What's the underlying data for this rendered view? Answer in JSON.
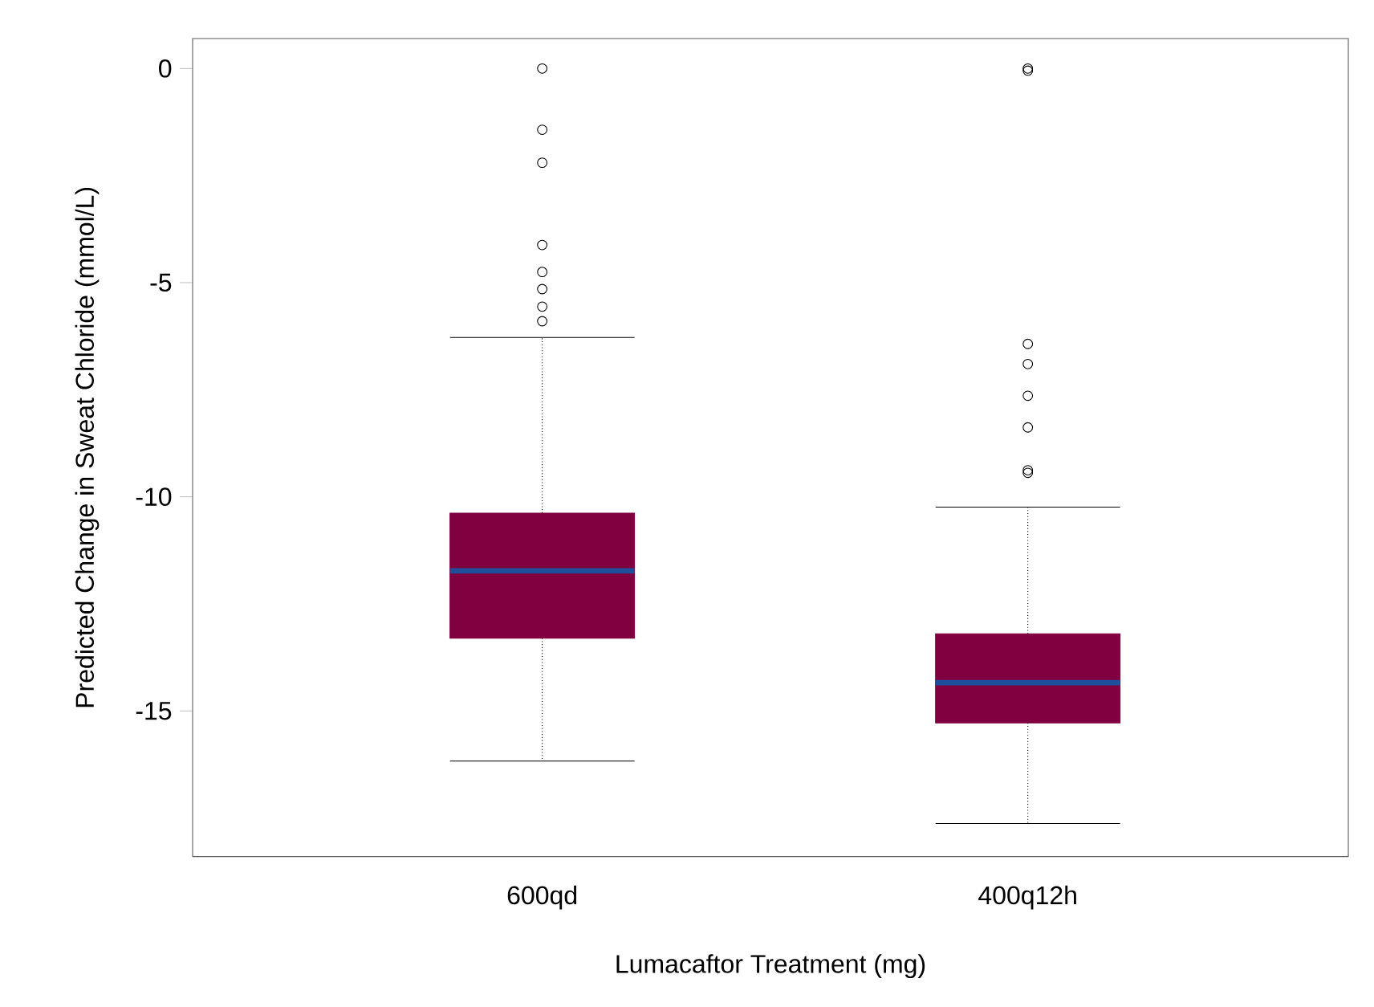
{
  "chart_data": {
    "type": "box",
    "xlabel": "Lumacaftor Treatment (mg)",
    "ylabel": "Predicted Change in Sweat Chloride (mmol/L)",
    "categories": [
      "600qd",
      "400q12h"
    ],
    "color": "#800040",
    "boxes": [
      {
        "low": -16.17,
        "q1": -13.3,
        "median": -11.73,
        "q3": -10.38,
        "high": -6.28,
        "outliers": [
          0,
          -1.43,
          -2.2,
          -4.12,
          -4.75,
          -5.15,
          -5.56,
          -5.9
        ]
      },
      {
        "low": -17.63,
        "q1": -15.28,
        "median": -14.34,
        "q3": -13.2,
        "high": -10.24,
        "outliers": [
          0,
          -0.05,
          -6.43,
          -6.9,
          -7.64,
          -8.38,
          -9.38,
          -9.44
        ]
      }
    ],
    "ylim": [
      -18.4,
      0.7
    ],
    "yticks": [
      0,
      -5,
      -10,
      -15
    ]
  }
}
